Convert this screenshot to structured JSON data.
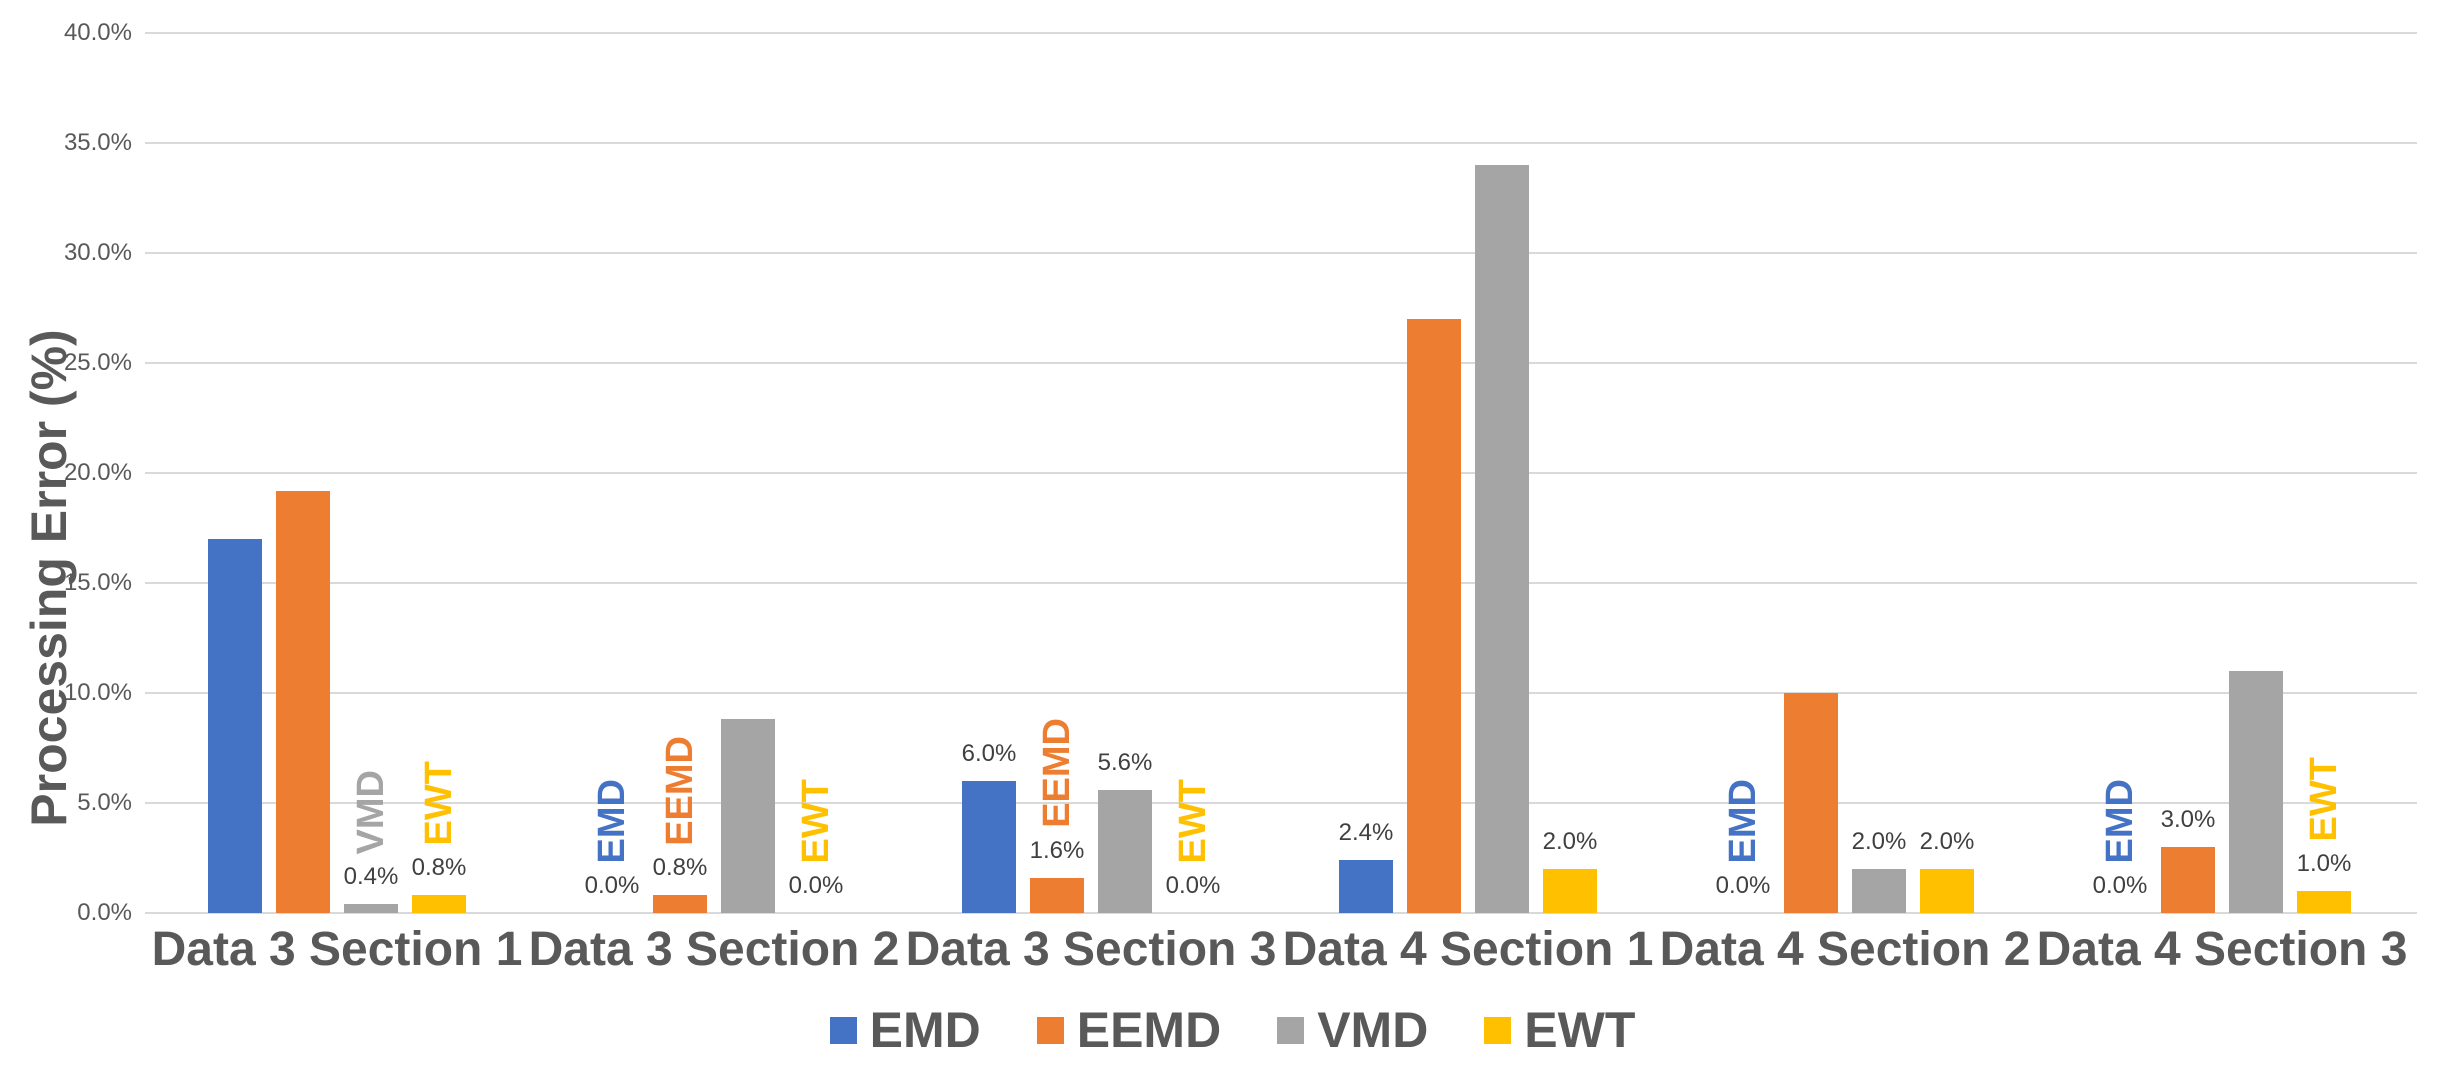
{
  "chart_data": {
    "type": "bar",
    "title": "",
    "xlabel": "",
    "ylabel": "Processing Error (%)",
    "ylim": [
      0,
      40
    ],
    "y_tick_step": 5,
    "y_ticks": [
      "40.0%",
      "35.0%",
      "30.0%",
      "25.0%",
      "20.0%",
      "15.0%",
      "10.0%",
      "5.0%",
      "0.0%"
    ],
    "grid": true,
    "legend_position": "bottom-center",
    "categories": [
      "Data 3 Section 1",
      "Data 3 Section 2",
      "Data 3 Section 3",
      "Data 4 Section 1",
      "Data 4 Section 2",
      "Data 4 Section 3"
    ],
    "series": [
      {
        "name": "EMD",
        "color": "#4472C4",
        "values": [
          17.0,
          0.0,
          6.0,
          2.4,
          0.0,
          0.0
        ],
        "value_labels": [
          "",
          "0.0%",
          "6.0%",
          "2.4%",
          "0.0%",
          "0.0%"
        ],
        "name_labels": [
          false,
          true,
          false,
          false,
          true,
          true
        ]
      },
      {
        "name": "EEMD",
        "color": "#ED7D31",
        "values": [
          19.2,
          0.8,
          1.6,
          27.0,
          10.0,
          3.0
        ],
        "value_labels": [
          "",
          "0.8%",
          "1.6%",
          "",
          "",
          "3.0%"
        ],
        "name_labels": [
          false,
          true,
          true,
          false,
          false,
          false
        ]
      },
      {
        "name": "VMD",
        "color": "#A5A5A5",
        "values": [
          0.4,
          8.8,
          5.6,
          34.0,
          2.0,
          11.0
        ],
        "value_labels": [
          "0.4%",
          "",
          "5.6%",
          "",
          "2.0%",
          ""
        ],
        "name_labels": [
          true,
          false,
          false,
          false,
          false,
          false
        ]
      },
      {
        "name": "EWT",
        "color": "#FFC000",
        "values": [
          0.8,
          0.0,
          0.0,
          2.0,
          2.0,
          1.0
        ],
        "value_labels": [
          "0.8%",
          "0.0%",
          "0.0%",
          "2.0%",
          "2.0%",
          "1.0%"
        ],
        "name_labels": [
          true,
          true,
          true,
          false,
          false,
          true
        ]
      }
    ],
    "legend": [
      "EMD",
      "EEMD",
      "VMD",
      "EWT"
    ],
    "colors": {
      "gridline": "#D9D9D9",
      "axis_text": "#595959",
      "value_label_text": "#404040"
    }
  }
}
